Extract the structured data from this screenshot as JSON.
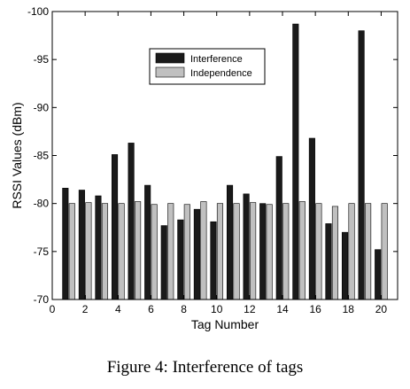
{
  "chart_data": {
    "type": "bar",
    "title": "",
    "xlabel": "Tag Number",
    "ylabel": "RSSI Values (dBm)",
    "categories": [
      1,
      2,
      3,
      4,
      5,
      6,
      7,
      8,
      9,
      10,
      11,
      12,
      13,
      14,
      15,
      16,
      17,
      18,
      19,
      20
    ],
    "series": [
      {
        "name": "Interference",
        "color": "#1a1a1a",
        "values": [
          -81.6,
          -81.4,
          -80.8,
          -85.1,
          -86.3,
          -81.9,
          -77.7,
          -78.3,
          -79.4,
          -78.1,
          -81.9,
          -81.0,
          -80.0,
          -84.9,
          -98.7,
          -86.8,
          -77.9,
          -77.0,
          -98.0,
          -75.2
        ]
      },
      {
        "name": "Independence",
        "color": "#c0c0c0",
        "values": [
          -80.0,
          -80.1,
          -80.0,
          -80.0,
          -80.2,
          -79.9,
          -80.0,
          -79.9,
          -80.2,
          -80.0,
          -80.0,
          -80.1,
          -79.9,
          -80.0,
          -80.2,
          -80.0,
          -79.7,
          -80.0,
          -80.0,
          -80.0
        ]
      }
    ],
    "xlim": [
      0,
      21
    ],
    "ylim": [
      -70,
      -100
    ],
    "y_inverted": true,
    "xticks": [
      0,
      2,
      4,
      6,
      8,
      10,
      12,
      14,
      16,
      18,
      20
    ],
    "yticks": [
      -70,
      -75,
      -80,
      -85,
      -90,
      -95,
      -100
    ],
    "grid": false,
    "legend_position": "top-center"
  },
  "caption": "Figure 4: Interference of tags"
}
